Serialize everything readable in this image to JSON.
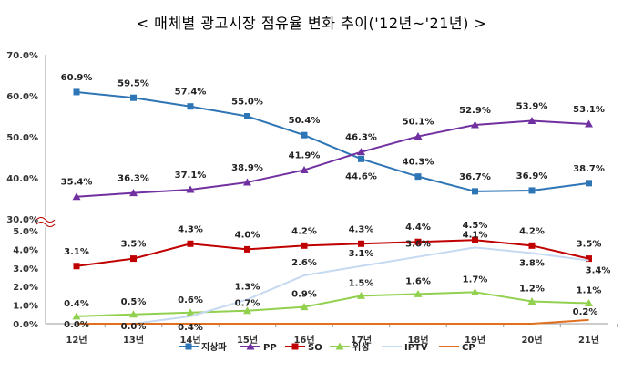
{
  "chart_data": {
    "type": "line",
    "title": "< 매체별 광고시장 점유율 변화 추이('12년~'21년) >",
    "categories": [
      "12년",
      "13년",
      "14년",
      "15년",
      "16년",
      "17년",
      "18년",
      "19년",
      "20년",
      "21년"
    ],
    "upper_ylim": [
      30,
      70
    ],
    "upper_yticks": [
      "30.0%",
      "40.0%",
      "50.0%",
      "60.0%",
      "70.0%"
    ],
    "lower_ylim": [
      0,
      5
    ],
    "lower_yticks": [
      "0.0%",
      "1.0%",
      "2.0%",
      "3.0%",
      "4.0%",
      "5.0%"
    ],
    "axis_break": true,
    "legend_position": "bottom",
    "series": [
      {
        "name": "지상파",
        "color": "#2E75B6",
        "marker": "square",
        "axis": "upper",
        "values": [
          60.9,
          59.5,
          57.4,
          55.0,
          50.4,
          44.6,
          40.3,
          36.7,
          36.9,
          38.7
        ],
        "labels": [
          "60.9%",
          "59.5%",
          "57.4%",
          "55.0%",
          "50.4%",
          "44.6%",
          "40.3%",
          "36.7%",
          "36.9%",
          "38.7%"
        ]
      },
      {
        "name": "PP",
        "color": "#7030A0",
        "marker": "triangle",
        "axis": "upper",
        "values": [
          35.4,
          36.3,
          37.1,
          38.9,
          41.9,
          46.3,
          50.1,
          52.9,
          53.9,
          53.1
        ],
        "labels": [
          "35.4%",
          "36.3%",
          "37.1%",
          "38.9%",
          "41.9%",
          "46.3%",
          "50.1%",
          "52.9%",
          "53.9%",
          "53.1%"
        ]
      },
      {
        "name": "SO",
        "color": "#C00000",
        "marker": "square",
        "axis": "lower",
        "values": [
          3.1,
          3.5,
          4.3,
          4.0,
          4.2,
          4.3,
          4.4,
          4.5,
          4.2,
          3.5
        ],
        "labels": [
          "3.1%",
          "3.5%",
          "4.3%",
          "4.0%",
          "4.2%",
          "4.3%",
          "4.4%",
          "4.5%",
          "4.2%",
          "3.5%"
        ]
      },
      {
        "name": "위성",
        "color": "#92D050",
        "marker": "triangle",
        "axis": "lower",
        "values": [
          0.4,
          0.5,
          0.6,
          0.7,
          0.9,
          1.5,
          1.6,
          1.7,
          1.2,
          1.1
        ],
        "labels": [
          "0.4%",
          "0.5%",
          "0.6%",
          "0.7%",
          "0.9%",
          "1.5%",
          "1.6%",
          "1.7%",
          "1.2%",
          "1.1%"
        ]
      },
      {
        "name": "IPTV",
        "color": "#C5D9F1",
        "marker": "none",
        "axis": "lower",
        "values": [
          0.0,
          0.0,
          0.4,
          1.3,
          2.6,
          3.1,
          3.6,
          4.1,
          3.8,
          3.4
        ],
        "labels": [
          "",
          "0.0%",
          "0.4%",
          "1.3%",
          "2.6%",
          "3.1%",
          "3.6%",
          "4.1%",
          "3.8%",
          "3.4%"
        ]
      },
      {
        "name": "CP",
        "color": "#E07020",
        "marker": "none",
        "axis": "lower",
        "values": [
          0.0,
          0.0,
          0.0,
          0.0,
          0.0,
          0.0,
          0.0,
          0.0,
          0.0,
          0.2
        ],
        "labels": [
          "0.0%",
          "",
          "",
          "",
          "",
          "",
          "",
          "",
          "",
          "0.2%"
        ]
      }
    ]
  }
}
